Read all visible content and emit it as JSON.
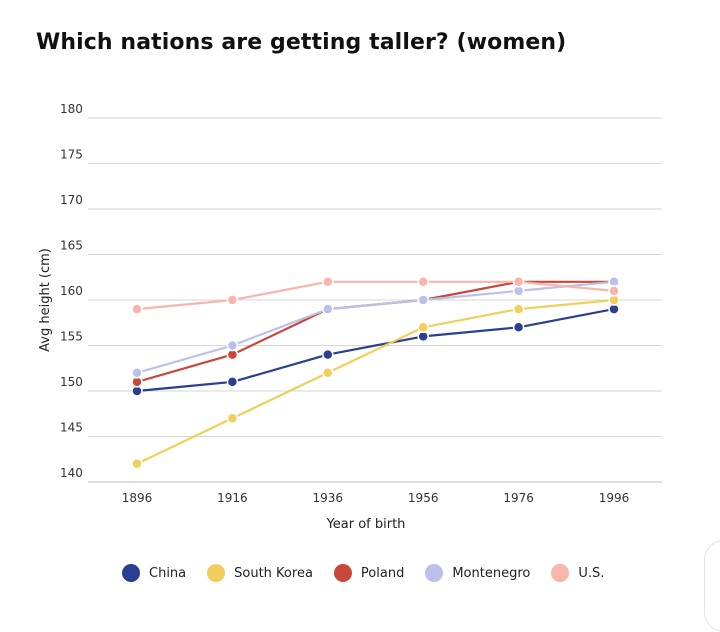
{
  "chart_data": {
    "type": "line",
    "title": "Which nations are getting taller? (women)",
    "xlabel": "Year of birth",
    "ylabel": "Avg height (cm)",
    "x": [
      1896,
      1916,
      1936,
      1956,
      1976,
      1996
    ],
    "ylim": [
      140,
      180
    ],
    "yticks": [
      140,
      145,
      150,
      155,
      160,
      165,
      170,
      175,
      180
    ],
    "grid": true,
    "legend_position": "bottom",
    "series": [
      {
        "name": "China",
        "color": "#2a3f8f",
        "values": [
          150,
          151,
          154,
          156,
          157,
          159
        ]
      },
      {
        "name": "South Korea",
        "color": "#f0cf5c",
        "values": [
          142,
          147,
          152,
          157,
          159,
          160
        ]
      },
      {
        "name": "Poland",
        "color": "#c8473a",
        "values": [
          151,
          154,
          159,
          160,
          162,
          162
        ]
      },
      {
        "name": "Montenegro",
        "color": "#b9c0ea",
        "values": [
          152,
          155,
          159,
          160,
          161,
          162
        ]
      },
      {
        "name": "U.S.",
        "color": "#f7b5ab",
        "values": [
          159,
          160,
          162,
          162,
          162,
          161
        ]
      }
    ]
  }
}
